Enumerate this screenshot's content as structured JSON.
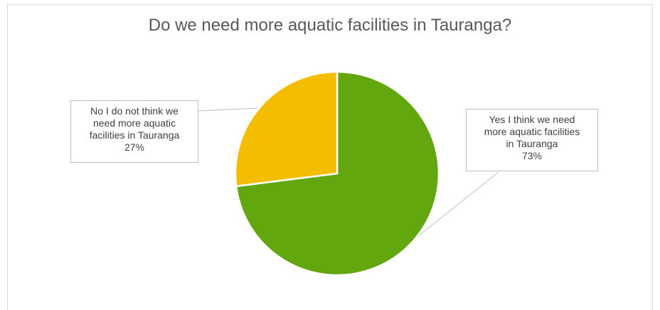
{
  "chart_data": {
    "type": "pie",
    "title": "Do we need more aquatic facilities in Tauranga?",
    "slices": [
      {
        "label": "Yes I think we need more aquatic facilities in Tauranga",
        "label_lines": [
          "Yes I think we need",
          "more aquatic facilities",
          "in Tauranga"
        ],
        "value": 73,
        "percent_label": "73%",
        "color": "#63a70f"
      },
      {
        "label": "No I do not think we need more aquatic facilities in Tauranga",
        "label_lines": [
          "No I do not think we",
          "need more aquatic",
          "facilities in Tauranga"
        ],
        "value": 27,
        "percent_label": "27%",
        "color": "#f5bd00"
      }
    ],
    "legend": "none",
    "start_angle_deg": 0,
    "direction": "clockwise"
  }
}
